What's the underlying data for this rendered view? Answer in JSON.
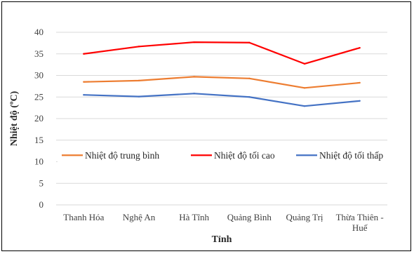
{
  "chart_data": {
    "type": "line",
    "title": "",
    "xlabel": "Tỉnh",
    "ylabel": "Nhiệt độ (ºC)",
    "categories": [
      "Thanh Hóa",
      "Nghệ An",
      "Hà Tĩnh",
      "Quảng Bình",
      "Quảng Trị",
      "Thừa Thiên - Huế"
    ],
    "ylim": [
      0,
      40
    ],
    "yticks": [
      0,
      5,
      10,
      15,
      20,
      25,
      30,
      35,
      40
    ],
    "grid": "horizontal",
    "legend": "inside-middle",
    "series": [
      {
        "name": "Nhiệt độ trung bình",
        "color": "#ED7D31",
        "values": [
          28.5,
          28.8,
          29.7,
          29.3,
          27.1,
          28.3
        ]
      },
      {
        "name": "Nhiệt độ tối cao",
        "color": "#FF0000",
        "values": [
          35.0,
          36.7,
          37.7,
          37.6,
          32.7,
          36.4
        ]
      },
      {
        "name": "Nhiệt độ tối thấp",
        "color": "#4472C4",
        "values": [
          25.5,
          25.1,
          25.8,
          25.0,
          22.9,
          24.1
        ]
      }
    ]
  }
}
